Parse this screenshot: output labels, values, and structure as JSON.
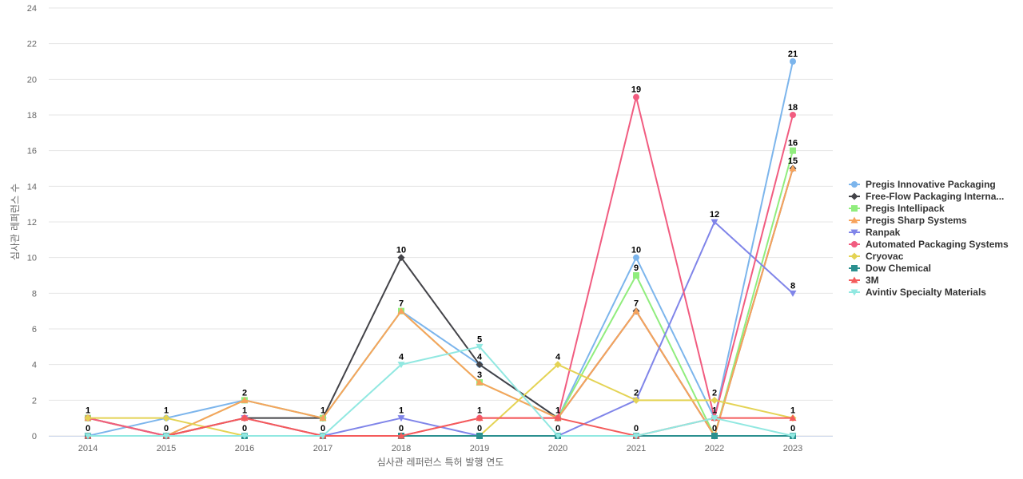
{
  "chart_data": {
    "type": "line",
    "title": "",
    "xlabel": "심사관 레퍼런스 특허 발행 연도",
    "ylabel": "심사관 레퍼런스 수",
    "x": [
      "2014",
      "2015",
      "2016",
      "2017",
      "2018",
      "2019",
      "2020",
      "2021",
      "2022",
      "2023"
    ],
    "ylim": [
      0,
      24
    ],
    "yticks": [
      0,
      2,
      4,
      6,
      8,
      10,
      12,
      14,
      16,
      18,
      20,
      22,
      24
    ],
    "grid": true,
    "legend_position": "right",
    "series": [
      {
        "name": "Pregis Innovative Packaging",
        "color": "#7cb5ec",
        "marker": "circle",
        "values": [
          0,
          1,
          2,
          1,
          7,
          4,
          1,
          10,
          1,
          21
        ]
      },
      {
        "name": "Free-Flow Packaging Interna...",
        "color": "#434348",
        "marker": "diamond",
        "values": [
          1,
          0,
          1,
          1,
          10,
          4,
          1,
          7,
          0,
          15
        ]
      },
      {
        "name": "Pregis Intellipack",
        "color": "#90ed7d",
        "marker": "square",
        "values": [
          1,
          0,
          2,
          1,
          7,
          3,
          1,
          9,
          0,
          16
        ]
      },
      {
        "name": "Pregis Sharp Systems",
        "color": "#f7a35c",
        "marker": "triangle",
        "values": [
          1,
          0,
          2,
          1,
          7,
          3,
          1,
          7,
          0,
          15
        ]
      },
      {
        "name": "Ranpak",
        "color": "#8085e9",
        "marker": "triangle-down",
        "values": [
          0,
          0,
          1,
          0,
          1,
          0,
          0,
          2,
          12,
          8
        ]
      },
      {
        "name": "Automated Packaging Systems",
        "color": "#f15c80",
        "marker": "circle",
        "values": [
          1,
          0,
          1,
          0,
          0,
          1,
          1,
          19,
          1,
          18
        ]
      },
      {
        "name": "Cryovac",
        "color": "#e4d354",
        "marker": "diamond",
        "values": [
          1,
          1,
          0,
          0,
          0,
          0,
          4,
          2,
          2,
          1
        ]
      },
      {
        "name": "Dow Chemical",
        "color": "#2b908f",
        "marker": "square",
        "values": [
          0,
          0,
          0,
          0,
          0,
          0,
          0,
          0,
          0,
          0
        ]
      },
      {
        "name": "3M",
        "color": "#f45b5b",
        "marker": "triangle",
        "values": [
          0,
          0,
          1,
          0,
          0,
          1,
          1,
          0,
          1,
          1
        ]
      },
      {
        "name": "Avintiv Specialty Materials",
        "color": "#91e8e1",
        "marker": "triangle-down",
        "values": [
          0,
          0,
          0,
          0,
          4,
          5,
          0,
          0,
          1,
          0
        ]
      }
    ],
    "data_labels": [
      {
        "x": "2014",
        "y": 1,
        "text": "1"
      },
      {
        "x": "2014",
        "y": 0,
        "text": "0"
      },
      {
        "x": "2015",
        "y": 1,
        "text": "1"
      },
      {
        "x": "2015",
        "y": 0,
        "text": "0"
      },
      {
        "x": "2016",
        "y": 2,
        "text": "2"
      },
      {
        "x": "2016",
        "y": 1,
        "text": "1"
      },
      {
        "x": "2016",
        "y": 0,
        "text": "0"
      },
      {
        "x": "2017",
        "y": 1,
        "text": "1"
      },
      {
        "x": "2017",
        "y": 0,
        "text": "0"
      },
      {
        "x": "2018",
        "y": 10,
        "text": "10"
      },
      {
        "x": "2018",
        "y": 7,
        "text": "7"
      },
      {
        "x": "2018",
        "y": 4,
        "text": "4"
      },
      {
        "x": "2018",
        "y": 1,
        "text": "1"
      },
      {
        "x": "2018",
        "y": 0,
        "text": "0"
      },
      {
        "x": "2019",
        "y": 5,
        "text": "5"
      },
      {
        "x": "2019",
        "y": 4,
        "text": "4"
      },
      {
        "x": "2019",
        "y": 3,
        "text": "3"
      },
      {
        "x": "2019",
        "y": 1,
        "text": "1"
      },
      {
        "x": "2019",
        "y": 0,
        "text": "0"
      },
      {
        "x": "2020",
        "y": 4,
        "text": "4"
      },
      {
        "x": "2020",
        "y": 1,
        "text": "1"
      },
      {
        "x": "2020",
        "y": 0,
        "text": "0"
      },
      {
        "x": "2021",
        "y": 19,
        "text": "19"
      },
      {
        "x": "2021",
        "y": 10,
        "text": "10"
      },
      {
        "x": "2021",
        "y": 9,
        "text": "9"
      },
      {
        "x": "2021",
        "y": 7,
        "text": "7"
      },
      {
        "x": "2021",
        "y": 2,
        "text": "2"
      },
      {
        "x": "2021",
        "y": 0,
        "text": "0"
      },
      {
        "x": "2022",
        "y": 12,
        "text": "12"
      },
      {
        "x": "2022",
        "y": 2,
        "text": "2"
      },
      {
        "x": "2022",
        "y": 1,
        "text": "1"
      },
      {
        "x": "2022",
        "y": 0,
        "text": "0"
      },
      {
        "x": "2023",
        "y": 21,
        "text": "21"
      },
      {
        "x": "2023",
        "y": 18,
        "text": "18"
      },
      {
        "x": "2023",
        "y": 16,
        "text": "16"
      },
      {
        "x": "2023",
        "y": 15,
        "text": "15"
      },
      {
        "x": "2023",
        "y": 8,
        "text": "8"
      },
      {
        "x": "2023",
        "y": 1,
        "text": "1"
      },
      {
        "x": "2023",
        "y": 0,
        "text": "0"
      }
    ]
  }
}
